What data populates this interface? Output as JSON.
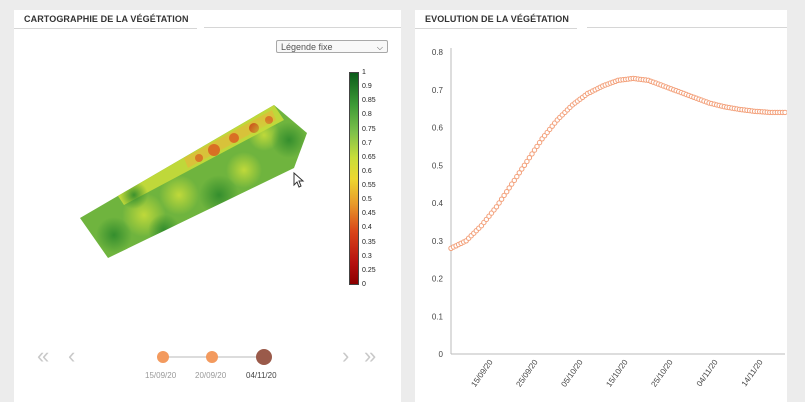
{
  "left_panel": {
    "title": "CARTOGRAPHIE DE LA VÉGÉTATION",
    "legend_select": {
      "value": "Légende fixe"
    },
    "color_scale": [
      "1",
      "0.9",
      "0.85",
      "0.8",
      "0.75",
      "0.7",
      "0.65",
      "0.6",
      "0.55",
      "0.5",
      "0.45",
      "0.4",
      "0.35",
      "0.3",
      "0.25",
      "0"
    ],
    "timeline": {
      "dates": [
        "15/09/20",
        "20/09/20",
        "04/11/20"
      ],
      "active_index": 2
    },
    "nav_icons": [
      "double-chevron-left-icon",
      "chevron-left-icon",
      "chevron-right-icon",
      "double-chevron-right-icon"
    ]
  },
  "right_panel": {
    "title": "EVOLUTION DE LA VÉGÉTATION"
  },
  "chart_data": {
    "type": "line",
    "title": "EVOLUTION DE LA VÉGÉTATION",
    "xlabel": "",
    "ylabel": "",
    "ylim": [
      0,
      0.8
    ],
    "yticks": [
      "0",
      "0.1",
      "0.2",
      "0.3",
      "0.4",
      "0.5",
      "0.6",
      "0.7",
      "0.8"
    ],
    "xtick_labels": [
      "15/09/20",
      "25/09/20",
      "05/10/20",
      "15/10/20",
      "25/10/20",
      "04/11/20",
      "14/11/20"
    ],
    "x_day_range": [
      0,
      66
    ],
    "series": [
      {
        "color": "#f3a07a",
        "x": [
          0,
          3,
          6,
          9,
          12,
          15,
          18,
          21,
          24,
          27,
          30,
          33,
          36,
          39,
          42,
          45,
          48,
          51,
          54,
          57,
          60,
          63,
          66
        ],
        "values": [
          0.28,
          0.3,
          0.34,
          0.39,
          0.45,
          0.51,
          0.57,
          0.62,
          0.66,
          0.69,
          0.71,
          0.725,
          0.73,
          0.725,
          0.71,
          0.695,
          0.68,
          0.665,
          0.655,
          0.648,
          0.643,
          0.64,
          0.64
        ]
      }
    ],
    "grid": false
  }
}
